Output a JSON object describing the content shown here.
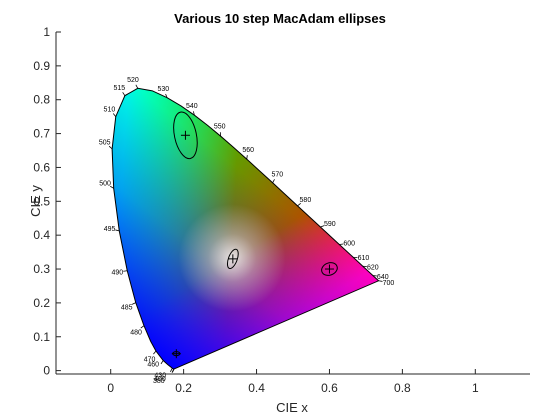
{
  "chart_data": {
    "type": "scatter",
    "title": "Various 10 step MacAdam ellipses",
    "xlabel": "CIE x",
    "ylabel": "CIE y",
    "xlim": [
      -0.15,
      1.15
    ],
    "ylim": [
      -0.01,
      1.0
    ],
    "xticks": [
      0,
      0.2,
      0.4,
      0.6,
      0.8,
      1
    ],
    "xtick_labels": [
      "0",
      "0.2",
      "0.4",
      "0.6",
      "0.8",
      "1"
    ],
    "yticks": [
      0,
      0.1,
      0.2,
      0.3,
      0.4,
      0.5,
      0.6,
      0.7,
      0.8,
      0.9,
      1
    ],
    "ytick_labels": [
      "0",
      "0.1",
      "0.2",
      "0.3",
      "0.4",
      "0.5",
      "0.6",
      "0.7",
      "0.8",
      "0.9",
      "1"
    ],
    "grid": false,
    "spectral_locus": [
      {
        "nm": 380,
        "x": 0.1741,
        "y": 0.005
      },
      {
        "nm": 400,
        "x": 0.1733,
        "y": 0.0048
      },
      {
        "nm": 420,
        "x": 0.1714,
        "y": 0.0051
      },
      {
        "nm": 430,
        "x": 0.1689,
        "y": 0.0069
      },
      {
        "nm": 440,
        "x": 0.1644,
        "y": 0.0109
      },
      {
        "nm": 450,
        "x": 0.1566,
        "y": 0.0177
      },
      {
        "nm": 460,
        "x": 0.144,
        "y": 0.0297
      },
      {
        "nm": 470,
        "x": 0.1241,
        "y": 0.0578
      },
      {
        "nm": 475,
        "x": 0.1096,
        "y": 0.0868
      },
      {
        "nm": 480,
        "x": 0.0913,
        "y": 0.1327
      },
      {
        "nm": 485,
        "x": 0.0687,
        "y": 0.2007
      },
      {
        "nm": 490,
        "x": 0.0454,
        "y": 0.295
      },
      {
        "nm": 495,
        "x": 0.0235,
        "y": 0.4127
      },
      {
        "nm": 500,
        "x": 0.0082,
        "y": 0.5384
      },
      {
        "nm": 505,
        "x": 0.0039,
        "y": 0.6548
      },
      {
        "nm": 510,
        "x": 0.0139,
        "y": 0.7502
      },
      {
        "nm": 515,
        "x": 0.0389,
        "y": 0.812
      },
      {
        "nm": 520,
        "x": 0.0743,
        "y": 0.8338
      },
      {
        "nm": 525,
        "x": 0.1142,
        "y": 0.8262
      },
      {
        "nm": 530,
        "x": 0.1547,
        "y": 0.8059
      },
      {
        "nm": 535,
        "x": 0.1929,
        "y": 0.7816
      },
      {
        "nm": 540,
        "x": 0.2296,
        "y": 0.7543
      },
      {
        "nm": 545,
        "x": 0.2658,
        "y": 0.7243
      },
      {
        "nm": 550,
        "x": 0.3016,
        "y": 0.6923
      },
      {
        "nm": 555,
        "x": 0.3373,
        "y": 0.6589
      },
      {
        "nm": 560,
        "x": 0.3731,
        "y": 0.6245
      },
      {
        "nm": 565,
        "x": 0.4087,
        "y": 0.5896
      },
      {
        "nm": 570,
        "x": 0.4441,
        "y": 0.5547
      },
      {
        "nm": 575,
        "x": 0.4788,
        "y": 0.5202
      },
      {
        "nm": 580,
        "x": 0.5125,
        "y": 0.4866
      },
      {
        "nm": 585,
        "x": 0.5448,
        "y": 0.4544
      },
      {
        "nm": 590,
        "x": 0.5752,
        "y": 0.4242
      },
      {
        "nm": 595,
        "x": 0.6029,
        "y": 0.3965
      },
      {
        "nm": 600,
        "x": 0.627,
        "y": 0.3725
      },
      {
        "nm": 610,
        "x": 0.6658,
        "y": 0.334
      },
      {
        "nm": 620,
        "x": 0.6915,
        "y": 0.3083
      },
      {
        "nm": 640,
        "x": 0.719,
        "y": 0.2809
      },
      {
        "nm": 700,
        "x": 0.7347,
        "y": 0.2653
      }
    ],
    "wavelength_labels": [
      {
        "text": "380",
        "nm": 380
      },
      {
        "text": "400",
        "nm": 400
      },
      {
        "text": "430",
        "nm": 430
      },
      {
        "text": "460",
        "nm": 460
      },
      {
        "text": "470",
        "nm": 470
      },
      {
        "text": "480",
        "nm": 480
      },
      {
        "text": "485",
        "nm": 485
      },
      {
        "text": "490",
        "nm": 490
      },
      {
        "text": "495",
        "nm": 495
      },
      {
        "text": "500",
        "nm": 500
      },
      {
        "text": "505",
        "nm": 505
      },
      {
        "text": "510",
        "nm": 510
      },
      {
        "text": "515",
        "nm": 515
      },
      {
        "text": "520",
        "nm": 520
      },
      {
        "text": "530",
        "nm": 530
      },
      {
        "text": "540",
        "nm": 540
      },
      {
        "text": "550",
        "nm": 550
      },
      {
        "text": "560",
        "nm": 560
      },
      {
        "text": "570",
        "nm": 570
      },
      {
        "text": "580",
        "nm": 580
      },
      {
        "text": "590",
        "nm": 590
      },
      {
        "text": "600",
        "nm": 600
      },
      {
        "text": "610",
        "nm": 610
      },
      {
        "text": "620",
        "nm": 620
      },
      {
        "text": "640",
        "nm": 640
      },
      {
        "text": "700",
        "nm": 700
      }
    ],
    "ellipses": [
      {
        "cx": 0.205,
        "cy": 0.695,
        "rx": 0.03,
        "ry": 0.07,
        "angle_deg": 12
      },
      {
        "cx": 0.335,
        "cy": 0.33,
        "rx": 0.012,
        "ry": 0.03,
        "angle_deg": -20
      },
      {
        "cx": 0.6,
        "cy": 0.3,
        "rx": 0.022,
        "ry": 0.018,
        "angle_deg": 20
      },
      {
        "cx": 0.18,
        "cy": 0.05,
        "rx": 0.01,
        "ry": 0.006,
        "angle_deg": 0
      }
    ],
    "colors": {
      "red": "#ff0000",
      "green": "#00ff00",
      "blue": "#0000ff",
      "white": "#ffffff",
      "locus_line": "#000000",
      "ellipse_line": "#000000",
      "axis": "#262626"
    }
  }
}
